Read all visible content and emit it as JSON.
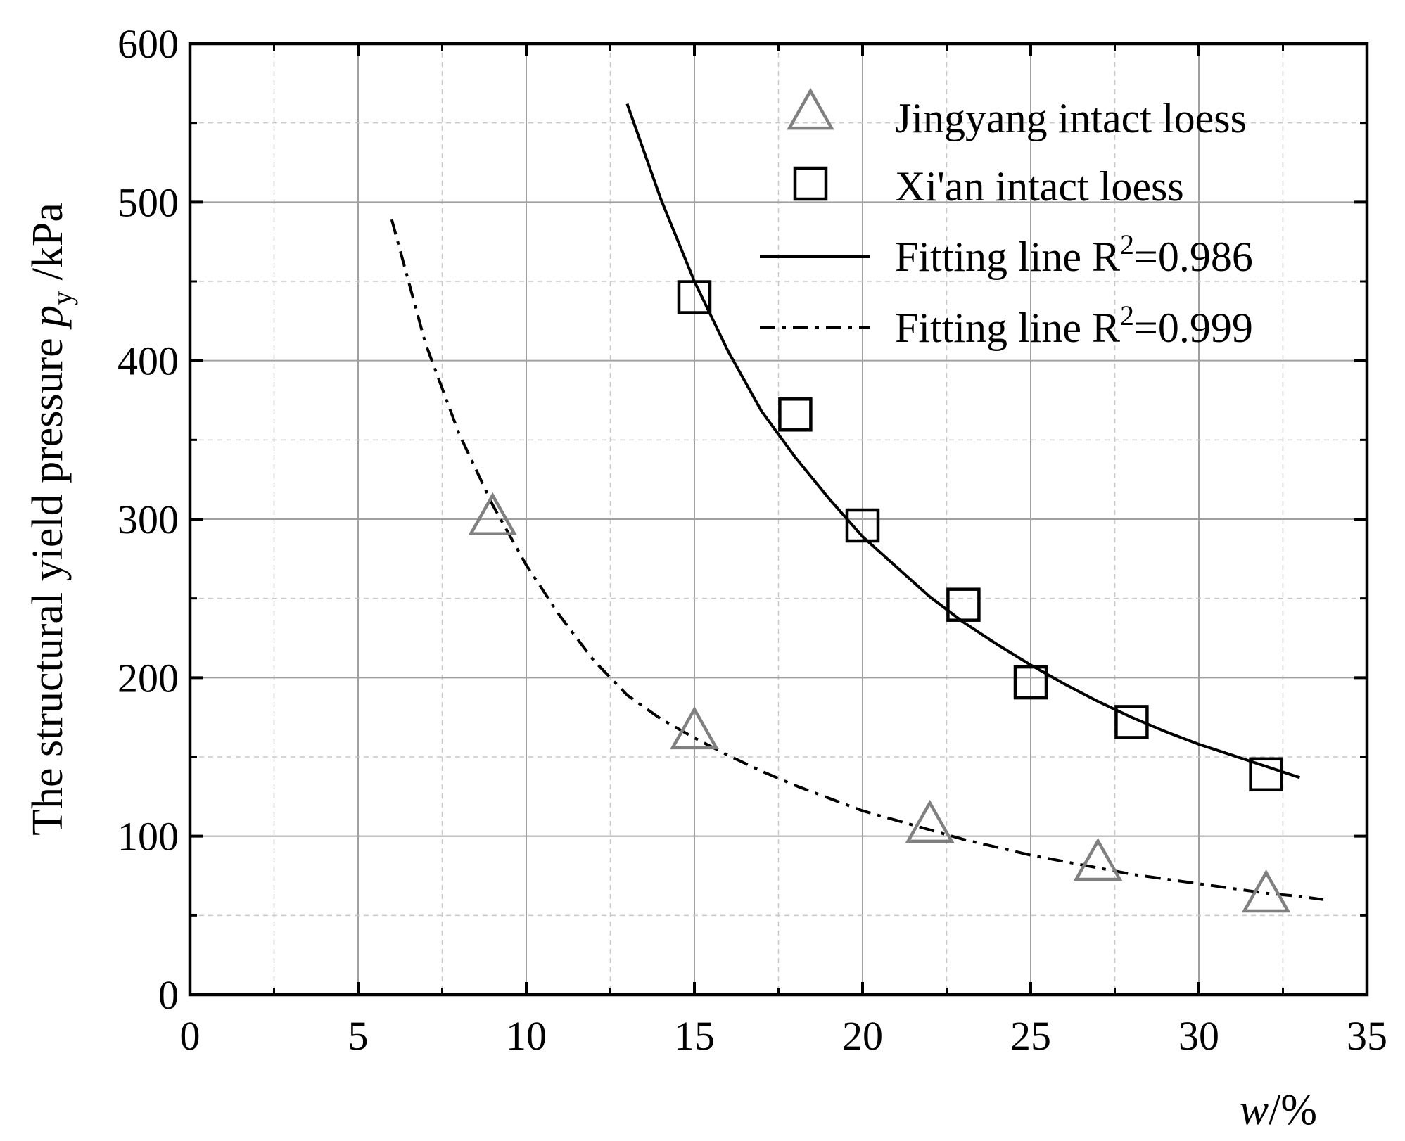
{
  "chart_data": {
    "type": "scatter",
    "xlabel_main": "w",
    "xlabel_unit": "/%",
    "ylabel_main": "The structural yield pressure ",
    "ylabel_var": "p",
    "ylabel_sub": "y",
    "ylabel_unit": " /kPa",
    "xlim": [
      0,
      35
    ],
    "ylim": [
      0,
      600
    ],
    "x_ticks": [
      0,
      5,
      10,
      15,
      20,
      25,
      30,
      35
    ],
    "y_ticks": [
      0,
      100,
      200,
      300,
      400,
      500,
      600
    ],
    "x_tick_labels": [
      "0",
      "5",
      "10",
      "15",
      "20",
      "25",
      "30",
      "35"
    ],
    "y_tick_labels": [
      "0",
      "100",
      "200",
      "300",
      "400",
      "500",
      "600"
    ],
    "grid": true,
    "legend_position": "top-right",
    "series": [
      {
        "name": "Jingyang intact loess",
        "kind": "scatter",
        "marker": "triangle",
        "color": "#808080",
        "x": [
          9,
          15,
          22,
          27,
          32
        ],
        "y": [
          300,
          165,
          106,
          82,
          62
        ]
      },
      {
        "name": "Xi'an intact loess",
        "kind": "scatter",
        "marker": "square",
        "color": "#000000",
        "x": [
          15,
          18,
          20,
          23,
          25,
          28,
          32
        ],
        "y": [
          440,
          366,
          296,
          246,
          197,
          172,
          139
        ]
      },
      {
        "name": "Fitting line R2=0.986",
        "label_prefix": "Fitting line R",
        "label_sup": "2",
        "label_suffix": "=0.986",
        "kind": "line",
        "style": "solid",
        "color": "#000000",
        "x": [
          13,
          14,
          15,
          16,
          17,
          18,
          19,
          20,
          21,
          22,
          23,
          24,
          25,
          26,
          27,
          28,
          29,
          30,
          31,
          32,
          33
        ],
        "y": [
          562,
          502,
          450,
          406,
          368,
          339,
          313,
          289,
          270,
          251,
          235,
          221,
          208,
          196,
          185,
          175,
          166,
          158,
          151,
          144,
          137
        ]
      },
      {
        "name": "Fitting line R2=0.999",
        "label_prefix": "Fitting line R",
        "label_sup": "2",
        "label_suffix": "=0.999",
        "kind": "line",
        "style": "dashdot",
        "color": "#000000",
        "x": [
          6,
          7,
          8,
          9,
          10,
          11,
          12,
          13,
          14,
          15,
          16,
          17,
          18,
          19,
          20,
          21,
          22,
          23,
          24,
          25,
          26,
          27,
          28,
          29,
          30,
          31,
          32,
          33,
          33.7
        ],
        "y": [
          489,
          411,
          354,
          309,
          271,
          239,
          211,
          189,
          174,
          162,
          151,
          141,
          132,
          124,
          116,
          110,
          104,
          98,
          93,
          88,
          84,
          80,
          76,
          73,
          70,
          67,
          64,
          62,
          60
        ]
      }
    ]
  }
}
